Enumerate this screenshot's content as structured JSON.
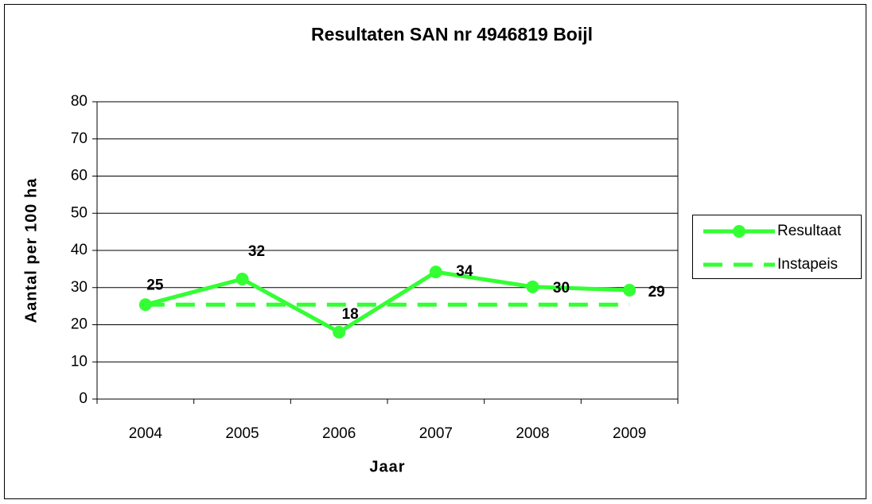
{
  "chart_data": {
    "type": "line",
    "title": "Resultaten SAN nr 4946819 Boijl",
    "x_label": "Jaar",
    "y_label": "Aantal per 100 ha",
    "categories": [
      "2004",
      "2005",
      "2006",
      "2007",
      "2008",
      "2009"
    ],
    "series": [
      {
        "name": "Resultaat",
        "color": "#33ff33",
        "style": "solid",
        "marker": true,
        "values": [
          25.4,
          32.3,
          18.0,
          34.2,
          30.2,
          29.3
        ],
        "value_labels": [
          "25",
          "32",
          "18",
          "34",
          "30",
          "29"
        ]
      },
      {
        "name": "Instapeis",
        "color": "#33ff33",
        "style": "dashed",
        "marker": false,
        "values": [
          25.4,
          25.4,
          25.4,
          25.4,
          25.4,
          25.4
        ]
      }
    ],
    "ylim": [
      0,
      80
    ],
    "yticks": [
      0,
      10,
      20,
      30,
      40,
      50,
      60,
      70,
      80
    ],
    "grid": true,
    "legend": "right"
  }
}
